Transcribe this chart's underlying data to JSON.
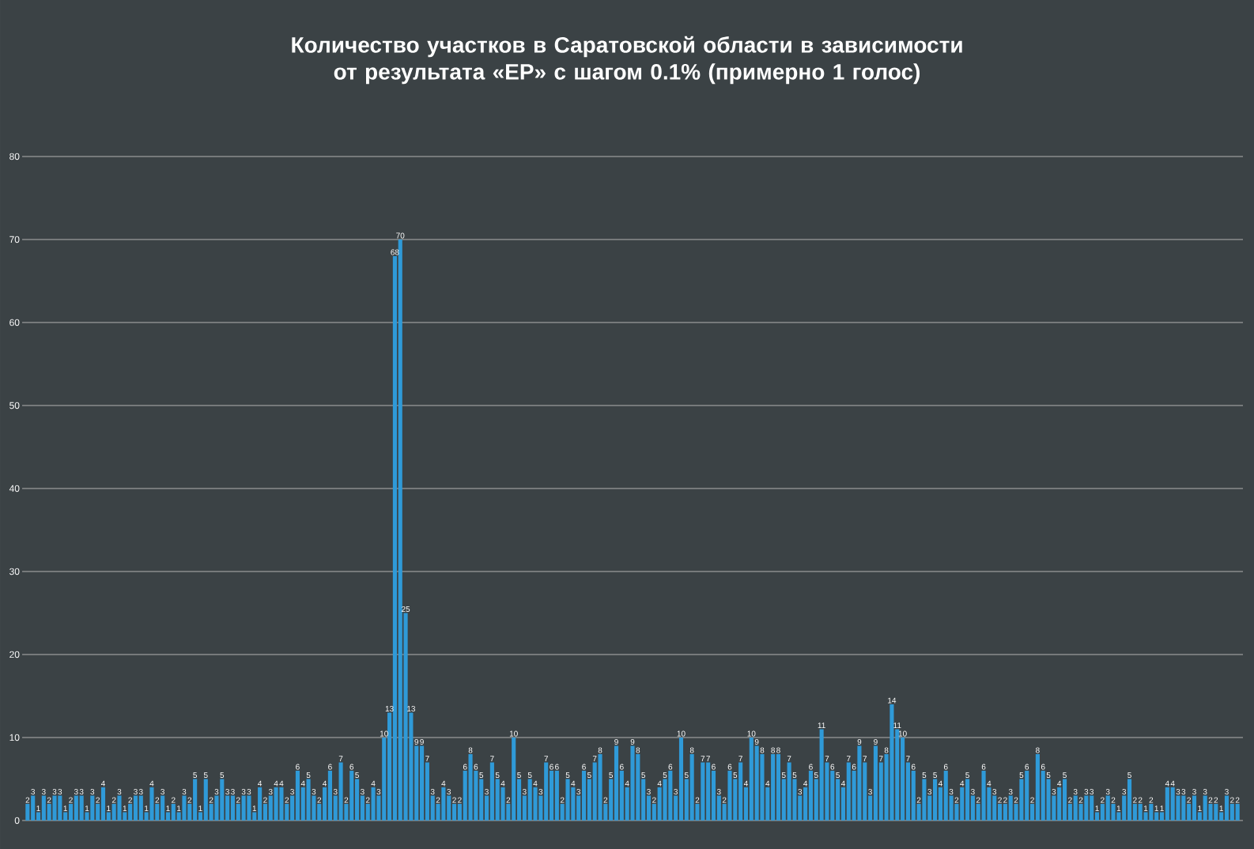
{
  "chart_data": {
    "type": "bar",
    "title": "Количество участков в Саратовской области в зависимости от результата «ЕР» с шагом 0.1% (примерно 1 голос)",
    "categories": [
      null,
      null,
      null,
      null,
      null,
      null,
      null,
      null,
      null,
      null,
      null,
      null,
      null,
      null,
      null,
      null,
      null,
      null,
      null,
      null,
      null,
      null,
      null,
      null,
      null,
      null,
      null,
      null,
      null,
      null,
      null,
      null,
      null,
      null,
      null,
      null,
      null,
      null,
      null,
      null,
      null,
      null,
      null,
      null,
      null,
      null,
      null,
      null,
      null,
      null,
      null,
      null,
      null,
      null,
      null,
      null,
      null,
      null,
      null,
      null,
      null,
      null,
      null,
      null,
      null,
      null,
      null,
      null,
      null,
      null,
      null,
      null,
      null,
      null,
      null,
      null,
      null,
      null,
      null,
      null,
      null,
      null,
      null,
      null,
      null,
      null,
      null,
      null,
      null,
      null,
      null,
      null,
      null,
      null,
      null,
      null,
      null,
      null,
      null,
      null,
      null,
      null,
      null,
      null,
      null,
      null,
      null,
      null,
      null,
      null,
      null,
      null,
      null,
      null,
      null,
      null,
      null,
      null,
      null,
      null,
      null,
      null,
      null,
      null,
      null,
      null,
      null,
      null,
      null,
      null,
      null,
      null,
      null,
      null,
      null,
      null,
      null,
      null,
      null,
      null,
      null,
      null,
      null,
      null,
      null,
      null,
      null,
      null,
      null,
      null,
      null,
      null,
      null,
      null,
      null,
      null,
      null,
      null,
      null,
      null,
      null,
      null,
      null,
      null,
      null,
      null,
      null,
      null,
      null,
      null,
      null,
      null,
      null,
      null,
      null,
      null,
      null,
      null,
      null,
      null,
      null,
      null,
      null,
      null,
      null,
      null,
      null,
      null,
      null,
      null,
      null,
      null,
      null,
      null,
      null,
      null,
      null,
      null,
      null,
      null,
      null,
      null,
      null,
      null,
      null,
      null,
      null,
      null,
      null,
      null,
      null,
      null,
      null,
      null,
      null,
      null,
      null,
      null,
      null,
      null,
      null,
      null,
      null,
      null,
      null
    ],
    "values": [
      2,
      3,
      1,
      3,
      2,
      3,
      3,
      1,
      2,
      3,
      3,
      1,
      3,
      2,
      4,
      1,
      2,
      3,
      1,
      2,
      3,
      3,
      1,
      4,
      2,
      3,
      1,
      2,
      1,
      3,
      2,
      5,
      1,
      5,
      2,
      3,
      5,
      3,
      3,
      2,
      3,
      3,
      1,
      4,
      2,
      3,
      4,
      4,
      2,
      3,
      6,
      4,
      5,
      3,
      2,
      4,
      6,
      3,
      7,
      2,
      6,
      5,
      3,
      2,
      4,
      3,
      10,
      13,
      68,
      70,
      25,
      13,
      9,
      9,
      7,
      3,
      2,
      4,
      3,
      2,
      2,
      6,
      8,
      6,
      5,
      3,
      7,
      5,
      4,
      2,
      10,
      5,
      3,
      5,
      4,
      3,
      7,
      6,
      6,
      2,
      5,
      4,
      3,
      6,
      5,
      7,
      8,
      2,
      5,
      9,
      6,
      4,
      9,
      8,
      5,
      3,
      2,
      4,
      5,
      6,
      3,
      10,
      5,
      8,
      2,
      7,
      7,
      6,
      3,
      2,
      6,
      5,
      7,
      4,
      10,
      9,
      8,
      4,
      8,
      8,
      5,
      7,
      5,
      3,
      4,
      6,
      5,
      11,
      7,
      6,
      5,
      4,
      7,
      6,
      9,
      7,
      3,
      9,
      7,
      8,
      14,
      11,
      10,
      7,
      6,
      2,
      5,
      3,
      5,
      4,
      6,
      3,
      2,
      4,
      5,
      3,
      2,
      6,
      4,
      3,
      2,
      2,
      3,
      2,
      5,
      6,
      2,
      8,
      6,
      5,
      3,
      4,
      5,
      2,
      3,
      2,
      3,
      3,
      1,
      2,
      3,
      2,
      1,
      3,
      5,
      2,
      2,
      1,
      2,
      1,
      1,
      4,
      4,
      3,
      3,
      2,
      3,
      1,
      3,
      2,
      2,
      1,
      3,
      2,
      2
    ],
    "color": "#2f9ad8",
    "ylim": [
      0,
      80
    ],
    "yticks": [
      0,
      10,
      20,
      30,
      40,
      50,
      60,
      70,
      80
    ],
    "grid": "y",
    "data_labels": true
  }
}
